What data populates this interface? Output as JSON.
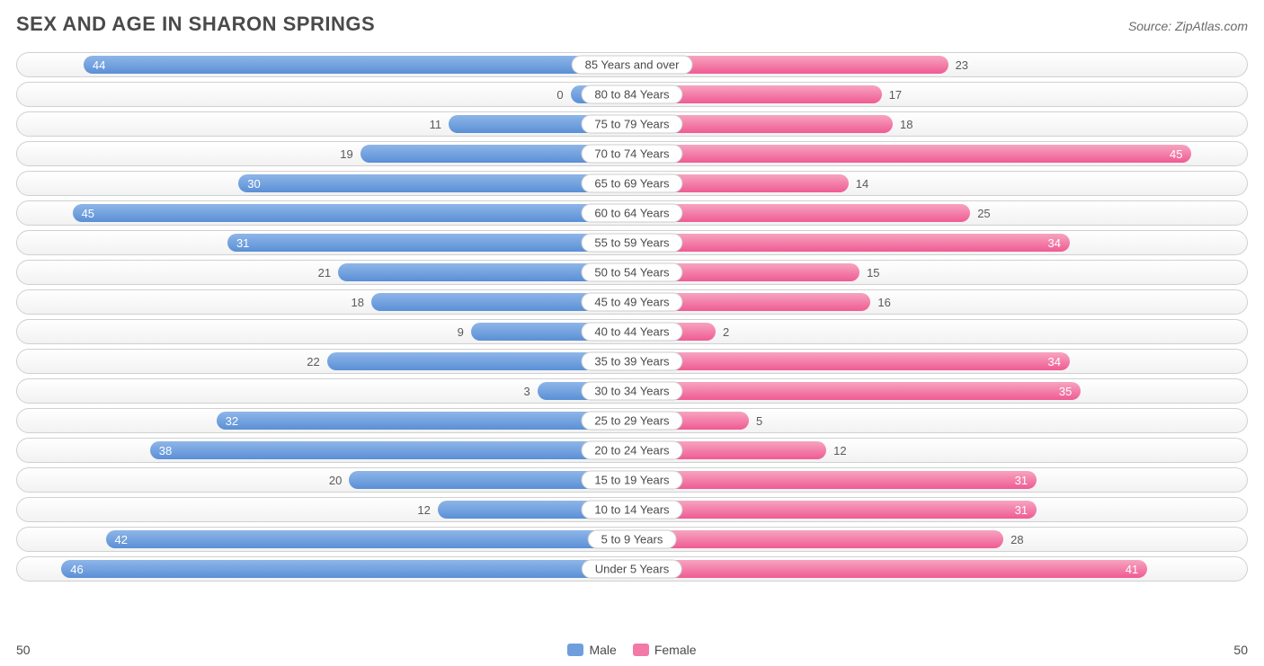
{
  "title": "SEX AND AGE IN SHARON SPRINGS",
  "source": "Source: ZipAtlas.com",
  "type": "population-pyramid",
  "max_value": 50,
  "axis_left_label": "50",
  "axis_right_label": "50",
  "male_color_start": "#8eb6e8",
  "male_color_end": "#5a8fd6",
  "female_color_start": "#f7a4c0",
  "female_color_end": "#ef5b93",
  "track_border": "#d0d0d0",
  "track_bg_top": "#ffffff",
  "track_bg_bottom": "#f2f2f2",
  "text_color": "#4a4a4a",
  "legend": [
    {
      "label": "Male",
      "color": "#6f9edd"
    },
    {
      "label": "Female",
      "color": "#f279a8"
    }
  ],
  "inside_threshold": 30,
  "rows": [
    {
      "category": "85 Years and over",
      "male": 44,
      "female": 23
    },
    {
      "category": "80 to 84 Years",
      "male": 0,
      "female": 17
    },
    {
      "category": "75 to 79 Years",
      "male": 11,
      "female": 18
    },
    {
      "category": "70 to 74 Years",
      "male": 19,
      "female": 45
    },
    {
      "category": "65 to 69 Years",
      "male": 30,
      "female": 14
    },
    {
      "category": "60 to 64 Years",
      "male": 45,
      "female": 25
    },
    {
      "category": "55 to 59 Years",
      "male": 31,
      "female": 34
    },
    {
      "category": "50 to 54 Years",
      "male": 21,
      "female": 15
    },
    {
      "category": "45 to 49 Years",
      "male": 18,
      "female": 16
    },
    {
      "category": "40 to 44 Years",
      "male": 9,
      "female": 2
    },
    {
      "category": "35 to 39 Years",
      "male": 22,
      "female": 34
    },
    {
      "category": "30 to 34 Years",
      "male": 3,
      "female": 35
    },
    {
      "category": "25 to 29 Years",
      "male": 32,
      "female": 5
    },
    {
      "category": "20 to 24 Years",
      "male": 38,
      "female": 12
    },
    {
      "category": "15 to 19 Years",
      "male": 20,
      "female": 31
    },
    {
      "category": "10 to 14 Years",
      "male": 12,
      "female": 31
    },
    {
      "category": "5 to 9 Years",
      "male": 42,
      "female": 28
    },
    {
      "category": "Under 5 Years",
      "male": 46,
      "female": 41
    }
  ]
}
